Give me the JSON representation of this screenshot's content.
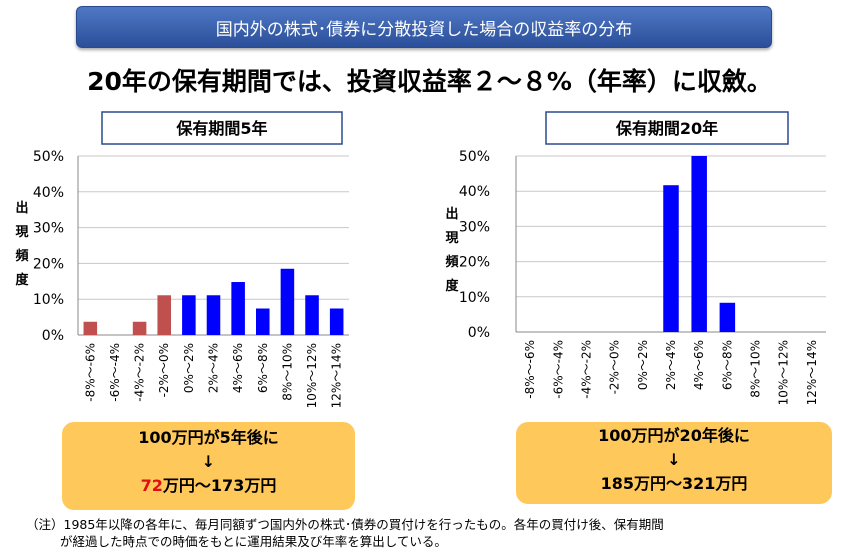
{
  "banner": {
    "title": "国内外の株式･債券に分散投資した場合の収益率の分布"
  },
  "headline": "20年の保有期間では、投資収益率２～８%（年率）に収斂。",
  "charts": [
    {
      "title": "保有期間5年",
      "ylabel_chars": [
        "出",
        "現",
        "頻",
        "度"
      ],
      "box": {
        "line1": "100万円が5年後に",
        "arrow": "↓",
        "line3_red": "72",
        "line3_rest": "万円～173万円"
      }
    },
    {
      "title": "保有期間20年",
      "ylabel_chars": [
        "出",
        "現",
        "頻",
        "度"
      ],
      "box": {
        "line1": "100万円が20年後に",
        "arrow": "↓",
        "line3_red": "",
        "line3_rest": "185万円～321万円"
      }
    }
  ],
  "colors": {
    "negative": "#c0504d",
    "positive": "#0000ff",
    "box": "#ffc85a",
    "banner": "#3d63b0"
  },
  "chart_data": [
    {
      "type": "bar",
      "title": "保有期間5年",
      "ylabel": "出現頻度",
      "categories": [
        "-8%～-6%",
        "-6%～-4%",
        "-4%～-2%",
        "-2%～0%",
        "0%～2%",
        "2%～4%",
        "4%～6%",
        "6%～8%",
        "8%～10%",
        "10%～12%",
        "12%～14%"
      ],
      "values": [
        3.7,
        0,
        3.7,
        11.1,
        11.1,
        11.1,
        14.8,
        7.4,
        18.5,
        11.1,
        7.4
      ],
      "bar_colors": [
        "#c0504d",
        "#c0504d",
        "#c0504d",
        "#c0504d",
        "#0000ff",
        "#0000ff",
        "#0000ff",
        "#0000ff",
        "#0000ff",
        "#0000ff",
        "#0000ff"
      ],
      "ylim": [
        0,
        50
      ],
      "yticks": [
        "0%",
        "10%",
        "20%",
        "30%",
        "40%",
        "50%"
      ],
      "grid": true
    },
    {
      "type": "bar",
      "title": "保有期間20年",
      "ylabel": "出現頻度",
      "categories": [
        "-8%～-6%",
        "-6%～-4%",
        "-4%～-2%",
        "-2%～0%",
        "0%～2%",
        "2%～4%",
        "4%～6%",
        "6%～8%",
        "8%～10%",
        "10%～12%",
        "12%～14%"
      ],
      "values": [
        0,
        0,
        0,
        0,
        0,
        41.7,
        50,
        8.3,
        0,
        0,
        0
      ],
      "bar_colors": [
        "#0000ff",
        "#0000ff",
        "#0000ff",
        "#0000ff",
        "#0000ff",
        "#0000ff",
        "#0000ff",
        "#0000ff",
        "#0000ff",
        "#0000ff",
        "#0000ff"
      ],
      "ylim": [
        0,
        50
      ],
      "yticks": [
        "0%",
        "10%",
        "20%",
        "30%",
        "40%",
        "50%"
      ],
      "grid": true
    }
  ],
  "note": {
    "line1": "（注）1985年以降の各年に、毎月同額ずつ国内外の株式･債券の買付けを行ったもの。各年の買付け後、保有期間",
    "line2": "が経過した時点での時価をもとに運用結果及び年率を算出している。"
  }
}
